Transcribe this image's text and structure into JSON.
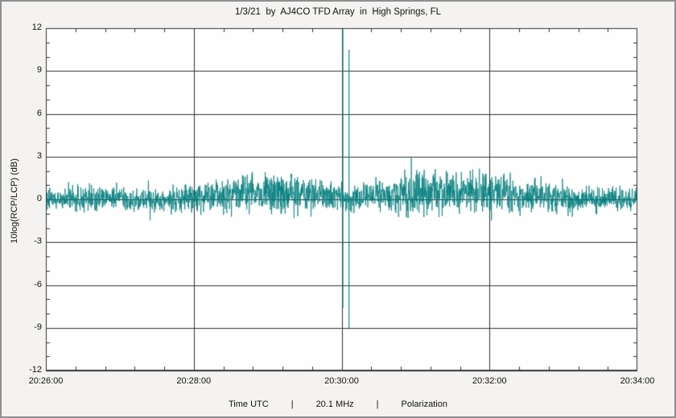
{
  "chart_data": {
    "type": "line",
    "title": "1/3/21  by  AJ4CO TFD Array  in  High Springs, FL",
    "ylabel": "10log(RCP/LCP) (dB)",
    "xlabel_parts": [
      "Time UTC",
      "20.1 MHz",
      "Polarization"
    ],
    "separator": "|",
    "x_ticks": [
      "20:26:00",
      "20:28:00",
      "20:30:00",
      "20:32:00",
      "20:34:00"
    ],
    "x_tick_seconds": [
      0,
      120,
      240,
      360,
      480
    ],
    "x_minor_step_seconds": 24,
    "duration_seconds": 480,
    "y_ticks": [
      12,
      9,
      6,
      3,
      0,
      -3,
      -6,
      -9,
      -12
    ],
    "y_minor_step_db": 1,
    "ylim": [
      -12,
      12
    ],
    "grid": true,
    "line_color": "#007c7c",
    "grid_color": "#333333",
    "plot_bg": "#fefefe",
    "window_bg": "#f4f3f1",
    "series": [
      {
        "name": "10log(RCP/LCP)",
        "baseline_db": 0,
        "noise_std_db": 0.42,
        "noise_band_db": 1.0,
        "bumps": [
          {
            "time": "20:29:00",
            "center_s": 182,
            "width_s": 45,
            "amplitude_db": 0.9
          },
          {
            "time": "20:31:30",
            "center_s": 332,
            "width_s": 60,
            "amplitude_db": 1.0
          }
        ],
        "spikes": [
          {
            "time": "20:30:01",
            "center_s": 241,
            "min_db": -7.6,
            "max_db": 12.0
          },
          {
            "time": "20:30:06",
            "center_s": 246,
            "min_db": -9.1,
            "max_db": 10.5
          }
        ]
      }
    ]
  }
}
